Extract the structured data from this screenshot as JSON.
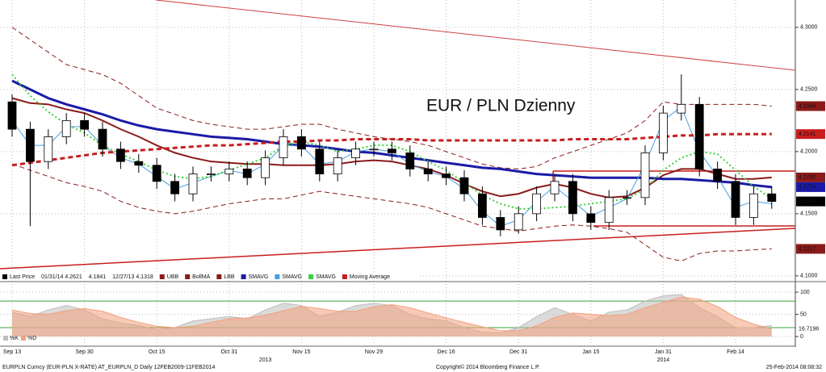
{
  "chart_data": [
    {
      "type": "candlestick",
      "title": "EUR / PLN Dzienny",
      "title_color": "#c0141c",
      "categories": [
        "Sep 13",
        null,
        null,
        null,
        "Sep 30",
        null,
        null,
        null,
        "Oct 15",
        null,
        null,
        null,
        "Oct 31",
        null,
        null,
        null,
        "Nov 15",
        null,
        null,
        null,
        "Nov 29",
        null,
        null,
        null,
        "Dec 16",
        null,
        null,
        null,
        "Dec 31",
        null,
        null,
        null,
        "Jan 15",
        null,
        null,
        null,
        "Jan 31",
        null,
        null,
        null,
        "Feb 14",
        null,
        null
      ],
      "x_secondary": [
        null,
        null,
        null,
        null,
        null,
        null,
        null,
        null,
        null,
        null,
        null,
        null,
        null,
        null,
        "2013",
        null,
        null,
        null,
        null,
        null,
        null,
        null,
        null,
        null,
        null,
        null,
        null,
        null,
        null,
        null,
        null,
        null,
        null,
        null,
        null,
        null,
        "2014",
        null,
        null,
        null,
        null,
        null,
        null
      ],
      "close_name": "Last Price",
      "legend_stats": [
        "01/31/14 4.2621",
        "4.1841",
        "12/27/13 4.1318"
      ],
      "open": [
        4.24,
        4.218,
        4.192,
        4.212,
        4.225,
        4.218,
        4.202,
        4.192,
        4.189,
        4.176,
        4.166,
        4.182,
        4.182,
        4.186,
        4.179,
        4.195,
        4.212,
        4.202,
        4.182,
        4.195,
        4.202,
        4.202,
        4.199,
        4.186,
        4.182,
        4.179,
        4.166,
        4.147,
        4.137,
        4.15,
        4.166,
        4.176,
        4.15,
        4.143,
        4.163,
        4.163,
        4.199,
        4.231,
        4.238,
        4.186,
        4.176,
        4.147,
        4.166
      ],
      "high": [
        4.246,
        4.224,
        4.218,
        4.231,
        4.231,
        4.224,
        4.208,
        4.198,
        4.195,
        4.182,
        4.188,
        4.188,
        4.192,
        4.192,
        4.201,
        4.218,
        4.218,
        4.208,
        4.201,
        4.208,
        4.208,
        4.208,
        4.205,
        4.192,
        4.188,
        4.185,
        4.172,
        4.153,
        4.156,
        4.172,
        4.182,
        4.182,
        4.156,
        4.169,
        4.169,
        4.205,
        4.237,
        4.2621,
        4.244,
        4.192,
        4.182,
        4.172,
        4.172
      ],
      "low": [
        4.212,
        4.14,
        4.186,
        4.206,
        4.212,
        4.196,
        4.186,
        4.183,
        4.17,
        4.16,
        4.16,
        4.176,
        4.176,
        4.173,
        4.173,
        4.189,
        4.196,
        4.176,
        4.176,
        4.189,
        4.196,
        4.193,
        4.18,
        4.176,
        4.173,
        4.16,
        4.141,
        4.1318,
        4.134,
        4.144,
        4.16,
        4.144,
        4.137,
        4.137,
        4.157,
        4.157,
        4.193,
        4.225,
        4.18,
        4.17,
        4.141,
        4.141,
        4.154
      ],
      "close": [
        4.218,
        4.192,
        4.212,
        4.225,
        4.218,
        4.202,
        4.192,
        4.189,
        4.176,
        4.166,
        4.182,
        4.182,
        4.186,
        4.179,
        4.195,
        4.212,
        4.202,
        4.182,
        4.195,
        4.202,
        4.202,
        4.199,
        4.186,
        4.182,
        4.179,
        4.166,
        4.147,
        4.137,
        4.15,
        4.166,
        4.176,
        4.15,
        4.143,
        4.163,
        4.163,
        4.199,
        4.231,
        4.238,
        4.186,
        4.176,
        4.147,
        4.166,
        4.1599
      ],
      "series": [
        {
          "name": "UBB",
          "color": "#8b1a1a",
          "dash": "dashed",
          "width": 1,
          "tag": true,
          "values": [
            4.3,
            4.29,
            4.28,
            4.27,
            4.266,
            4.262,
            4.255,
            4.245,
            4.235,
            4.23,
            4.225,
            4.222,
            4.22,
            4.218,
            4.218,
            4.22,
            4.222,
            4.222,
            4.218,
            4.215,
            4.212,
            4.21,
            4.208,
            4.205,
            4.2,
            4.195,
            4.19,
            4.187,
            4.186,
            4.188,
            4.195,
            4.2,
            4.205,
            4.21,
            4.215,
            4.225,
            4.24,
            4.238,
            4.238,
            4.238,
            4.238,
            4.238,
            4.2366
          ]
        },
        {
          "name": "BollMA",
          "color": "#8b1a1a",
          "dash": "solid",
          "width": 2,
          "tag": true,
          "values": [
            4.243,
            4.239,
            4.238,
            4.234,
            4.231,
            4.225,
            4.218,
            4.212,
            4.205,
            4.199,
            4.195,
            4.192,
            4.191,
            4.19,
            4.19,
            4.189,
            4.189,
            4.189,
            4.19,
            4.192,
            4.193,
            4.192,
            4.189,
            4.186,
            4.181,
            4.174,
            4.168,
            4.164,
            4.166,
            4.171,
            4.174,
            4.171,
            4.166,
            4.163,
            4.164,
            4.171,
            4.181,
            4.186,
            4.186,
            4.182,
            4.178,
            4.178,
            4.1792
          ]
        },
        {
          "name": "LBB",
          "color": "#8b1a1a",
          "dash": "dashed",
          "width": 1,
          "tag": true,
          "values": [
            4.19,
            4.185,
            4.18,
            4.175,
            4.172,
            4.168,
            4.16,
            4.155,
            4.152,
            4.15,
            4.152,
            4.155,
            4.158,
            4.16,
            4.162,
            4.162,
            4.165,
            4.168,
            4.166,
            4.164,
            4.162,
            4.16,
            4.158,
            4.155,
            4.15,
            4.145,
            4.14,
            4.138,
            4.136,
            4.138,
            4.14,
            4.141,
            4.14,
            4.138,
            4.135,
            4.125,
            4.115,
            4.112,
            4.118,
            4.12,
            4.12,
            4.121,
            4.1217
          ]
        },
        {
          "name": "SMAVG",
          "color": "#1a1aa6",
          "dash": "solid",
          "width": 3,
          "tag": true,
          "values": [
            4.257,
            4.25,
            4.243,
            4.238,
            4.234,
            4.23,
            4.225,
            4.221,
            4.218,
            4.216,
            4.214,
            4.212,
            4.211,
            4.21,
            4.208,
            4.206,
            4.205,
            4.204,
            4.202,
            4.2,
            4.199,
            4.197,
            4.195,
            4.193,
            4.191,
            4.189,
            4.187,
            4.186,
            4.184,
            4.182,
            4.181,
            4.18,
            4.179,
            4.179,
            4.179,
            4.179,
            4.178,
            4.178,
            4.177,
            4.176,
            4.175,
            4.173,
            4.1714
          ]
        },
        {
          "name": "SMAVG",
          "color": "#4a9ee0",
          "dash": "solid",
          "width": 1,
          "tag": false,
          "values": [
            4.225,
            4.205,
            4.205,
            4.22,
            4.22,
            4.205,
            4.195,
            4.19,
            4.18,
            4.17,
            4.175,
            4.18,
            4.185,
            4.182,
            4.19,
            4.205,
            4.205,
            4.19,
            4.192,
            4.2,
            4.202,
            4.2,
            4.19,
            4.184,
            4.18,
            4.17,
            4.152,
            4.14,
            4.145,
            4.16,
            4.172,
            4.16,
            4.148,
            4.155,
            4.162,
            4.19,
            4.225,
            4.236,
            4.2,
            4.18,
            4.155,
            4.16,
            4.158
          ]
        },
        {
          "name": "SMAVG",
          "color": "#3ecf3e",
          "dash": "dotted",
          "width": 2,
          "tag": false,
          "values": [
            4.262,
            4.245,
            4.232,
            4.222,
            4.215,
            4.205,
            4.198,
            4.192,
            4.185,
            4.18,
            4.178,
            4.18,
            4.185,
            4.19,
            4.195,
            4.205,
            4.208,
            4.205,
            4.2,
            4.202,
            4.205,
            4.205,
            4.2,
            4.192,
            4.185,
            4.175,
            4.165,
            4.158,
            4.154,
            4.154,
            4.155,
            4.156,
            4.158,
            4.16,
            4.162,
            4.17,
            4.185,
            4.195,
            4.2,
            4.198,
            4.185,
            4.172,
            4.162
          ]
        },
        {
          "name": "Moving Average",
          "color": "#c81e1e",
          "dash": "dashed",
          "width": 3,
          "tag": true,
          "values": [
            4.189,
            4.191,
            4.193,
            4.195,
            4.197,
            4.199,
            4.2,
            4.201,
            4.202,
            4.203,
            4.204,
            4.205,
            4.205,
            4.206,
            4.207,
            4.208,
            4.208,
            4.209,
            4.209,
            4.21,
            4.21,
            4.21,
            4.21,
            4.209,
            4.209,
            4.209,
            4.209,
            4.209,
            4.209,
            4.209,
            4.209,
            4.21,
            4.21,
            4.21,
            4.21,
            4.211,
            4.212,
            4.213,
            4.213,
            4.214,
            4.214,
            4.214,
            4.2141
          ]
        }
      ],
      "ylim": [
        4.096,
        4.322
      ],
      "yticks": [
        {
          "value": 4.1,
          "label": "4.1000"
        },
        {
          "value": 4.15,
          "label": "4.1500"
        },
        {
          "value": 4.2,
          "label": "4.2000"
        },
        {
          "value": 4.25,
          "label": "4.2500"
        },
        {
          "value": 4.3,
          "label": "4.3000"
        }
      ],
      "grid": true
    },
    {
      "type": "area",
      "series": [
        {
          "name": "%K",
          "color": "#bdbdbd",
          "tag": false,
          "values": [
            55,
            45,
            60,
            70,
            60,
            40,
            30,
            25,
            15,
            20,
            35,
            40,
            45,
            40,
            60,
            75,
            70,
            45,
            55,
            70,
            75,
            70,
            50,
            40,
            35,
            20,
            10,
            8,
            20,
            45,
            65,
            50,
            35,
            55,
            60,
            80,
            92,
            95,
            65,
            45,
            20,
            20,
            25
          ]
        },
        {
          "name": "%D",
          "color": "#f2a07b",
          "tag": true,
          "values": [
            60,
            52,
            50,
            58,
            63,
            57,
            43,
            32,
            23,
            20,
            23,
            32,
            40,
            42,
            48,
            58,
            68,
            63,
            57,
            57,
            67,
            72,
            65,
            53,
            42,
            32,
            22,
            13,
            13,
            24,
            43,
            53,
            50,
            47,
            50,
            65,
            77,
            89,
            84,
            68,
            43,
            28,
            16.7196
          ]
        }
      ],
      "levels": [
        80,
        20
      ],
      "level_color": "#3aa33a",
      "ylim": [
        -20,
        122
      ],
      "yticks": [
        0,
        50,
        100
      ],
      "grid": true
    }
  ],
  "footer": {
    "left": "EURPLN Curncy (EUR-PLN X-RATE) AT_EURPLN_D  Daily 12FEB2009-11FEB2014",
    "center": "Copyright© 2014 Bloomberg Finance L.P.",
    "right": "25-Feb-2014 08:08:32"
  }
}
